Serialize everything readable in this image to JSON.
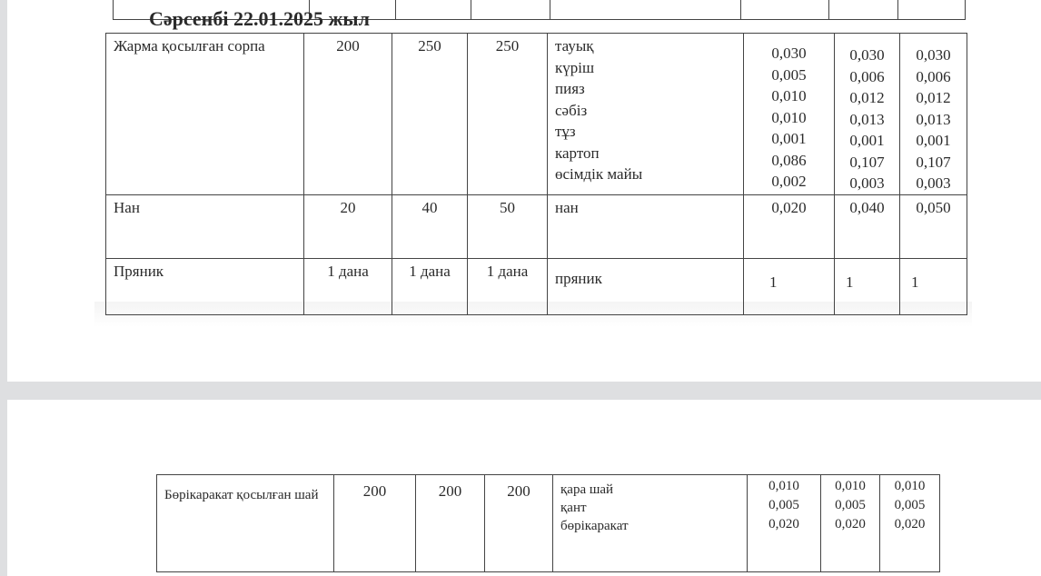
{
  "page1": {
    "day_title": "Сәрсенбі 22.01.2025 жыл",
    "rows": [
      {
        "dish": "Жарма қосылған сорпа",
        "portions": [
          "200",
          "250",
          "250"
        ],
        "ingredients": [
          "тауық",
          "күріш",
          "пияз",
          "сәбіз",
          "тұз",
          "картоп",
          "өсімдік майы"
        ],
        "col1": [
          "0,030",
          "0,005",
          "0,010",
          "0,010",
          "0,001",
          "0,086",
          "0,002"
        ],
        "col2": [
          "0,030",
          "0,006",
          "0,012",
          "0,013",
          "0,001",
          "0,107",
          "0,003"
        ],
        "col3": [
          "0,030",
          "0,006",
          "0,012",
          "0,013",
          "0,001",
          "0,107",
          "0,003"
        ]
      },
      {
        "dish": "Нан",
        "portions": [
          "20",
          "40",
          "50"
        ],
        "ingredients": [
          "нан"
        ],
        "col1": [
          "0,020"
        ],
        "col2": [
          "0,040"
        ],
        "col3": [
          "0,050"
        ]
      },
      {
        "dish": "Пряник",
        "portions": [
          "1 дана",
          "1 дана",
          "1 дана"
        ],
        "ingredients": [
          "пряник"
        ],
        "col1": [
          "1"
        ],
        "col2": [
          "1"
        ],
        "col3": [
          "1"
        ]
      }
    ]
  },
  "page2": {
    "rows": [
      {
        "dish": "Бөрікаракат қосылған шай",
        "portions": [
          "200",
          "200",
          "200"
        ],
        "ingredients": [
          "қара шай",
          "қант",
          "бөрікаракат"
        ],
        "col1": [
          "0,010",
          "0,005",
          "0,020"
        ],
        "col2": [
          "0,010",
          "0,005",
          "0,020"
        ],
        "col3": [
          "0,010",
          "0,005",
          "0,020"
        ]
      }
    ]
  }
}
